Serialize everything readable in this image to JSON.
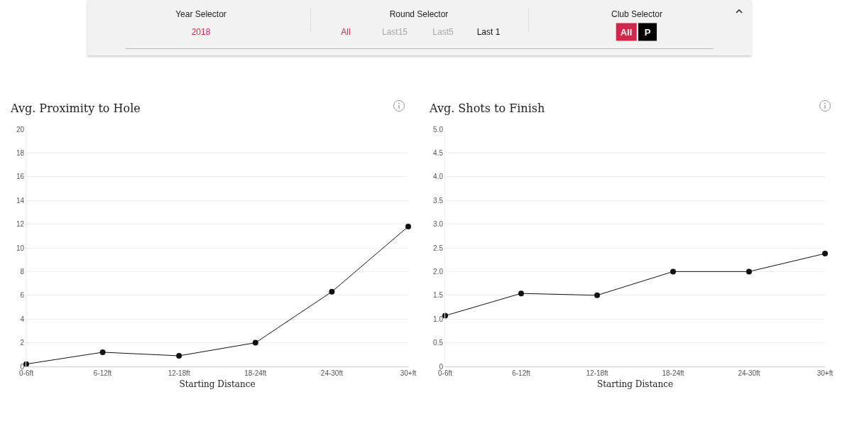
{
  "chart_data": [
    {
      "type": "other",
      "annotations": [
        "Year Selector",
        "2018",
        "Round Selector",
        "All",
        "Last15",
        "Last5",
        "Last 1",
        "Club Selector",
        "All",
        "P"
      ]
    },
    {
      "type": "line",
      "title": "Avg. Proximity to Hole",
      "xlabel": "Starting Distance",
      "categories": [
        "0-6ft",
        "6-12ft",
        "12-18ft",
        "18-24ft",
        "24-30ft",
        "30+ft"
      ],
      "values": [
        0.2,
        1.2,
        0.9,
        2.0,
        6.3,
        11.8
      ],
      "color": "#111111",
      "ylim": [
        0,
        20
      ],
      "yticks": [
        0,
        2,
        4,
        6,
        8,
        10,
        12,
        14,
        16,
        18,
        20
      ],
      "grid": "y",
      "marker": "circle"
    },
    {
      "type": "line",
      "title": "Avg. Shots to Finish",
      "xlabel": "Starting Distance",
      "categories": [
        "0-6ft",
        "6-12ft",
        "12-18ft",
        "18-24ft",
        "24-30ft",
        "30+ft"
      ],
      "values": [
        1.07,
        1.54,
        1.5,
        2.0,
        2.0,
        2.38
      ],
      "color": "#111111",
      "ylim": [
        0,
        5
      ],
      "yticks": [
        0,
        {
          "value": 0.5,
          "label": "0.5"
        },
        {
          "value": 1,
          "label": "1.0"
        },
        {
          "value": 1.5,
          "label": "1.5"
        },
        {
          "value": 2,
          "label": "2.0"
        },
        {
          "value": 2.5,
          "label": "2.5"
        },
        {
          "value": 3,
          "label": "3.0"
        },
        {
          "value": 3.5,
          "label": "3.5"
        },
        {
          "value": 4,
          "label": "4.0"
        },
        {
          "value": 4.5,
          "label": "4.5"
        },
        {
          "value": 5,
          "label": "5.0"
        }
      ],
      "grid": "y",
      "marker": "circle"
    }
  ]
}
